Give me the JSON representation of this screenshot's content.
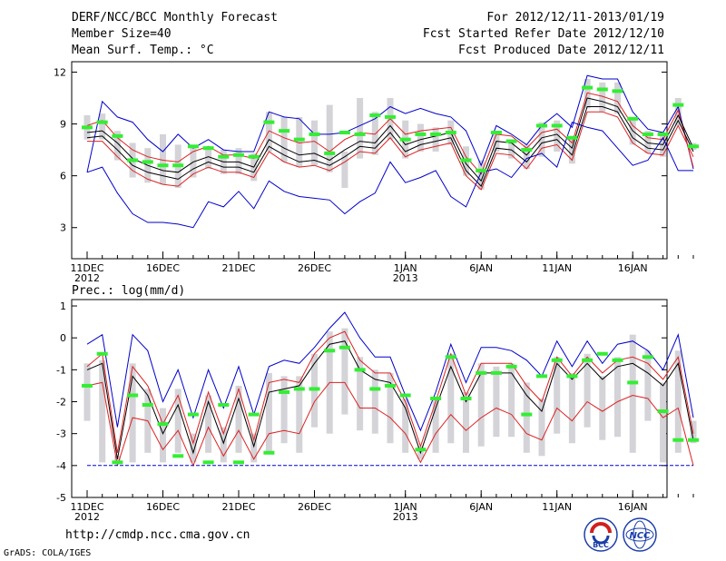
{
  "header": {
    "title": "DERF/NCC/BCC Monthly Forecast",
    "member_size": "Member Size=40",
    "variable_top": "Mean Surf. Temp.: °C",
    "period": "For 2012/12/11-2013/01/19",
    "started": "Fcst Started Refer Date 2012/12/10",
    "produced": "Fcst Produced Date 2012/12/11"
  },
  "bottom_label": "Prec.: log(mm/d)",
  "footer": {
    "url": "http://cmdp.ncc.cma.gov.cn",
    "grads": "GrADS: COLA/IGES",
    "logo_left": "BCC",
    "logo_right": "NCC"
  },
  "colors": {
    "box": "#d3d3d8",
    "obs": "#33ee33",
    "mean": "#000000",
    "spread": "#dd2222",
    "extreme": "#0000cc"
  },
  "chart_data": [
    {
      "type": "line",
      "title": "Mean Surf. Temp.: °C",
      "x_days": 40,
      "x_tick_labels": [
        {
          "day": 0,
          "label": "11DEC",
          "sub": "2012"
        },
        {
          "day": 5,
          "label": "16DEC",
          "sub": ""
        },
        {
          "day": 10,
          "label": "21DEC",
          "sub": ""
        },
        {
          "day": 15,
          "label": "26DEC",
          "sub": ""
        },
        {
          "day": 21,
          "label": "1JAN",
          "sub": "2013"
        },
        {
          "day": 26,
          "label": "6JAN",
          "sub": ""
        },
        {
          "day": 31,
          "label": "11JAN",
          "sub": ""
        },
        {
          "day": 36,
          "label": "16JAN",
          "sub": ""
        }
      ],
      "yticks": [
        3,
        6,
        9,
        12
      ],
      "ylim": [
        1.2,
        12.6
      ],
      "series": [
        {
          "name": "max",
          "values": [
            6.2,
            10.3,
            9.4,
            9.1,
            8.1,
            7.4,
            8.4,
            7.6,
            8.1,
            7.5,
            7.4,
            7.4,
            9.7,
            9.4,
            9.3,
            8.4,
            8.4,
            8.5,
            8.9,
            9.3,
            10.0,
            9.6,
            9.9,
            9.6,
            9.4,
            8.6,
            6.6,
            8.9,
            8.4,
            7.8,
            8.9,
            9.6,
            8.8,
            11.8,
            11.6,
            11.6,
            9.7,
            8.7,
            8.5,
            10.0,
            6.4
          ]
        },
        {
          "name": "upper",
          "values": [
            8.9,
            9.2,
            8.2,
            7.5,
            7.1,
            6.9,
            6.8,
            7.4,
            7.7,
            7.2,
            7.2,
            7.0,
            8.6,
            8.2,
            7.9,
            8.0,
            7.4,
            8.1,
            8.5,
            8.4,
            9.3,
            8.4,
            8.6,
            8.7,
            8.8,
            7.1,
            6.1,
            8.4,
            8.3,
            7.6,
            8.5,
            8.7,
            7.9,
            10.8,
            10.6,
            10.3,
            8.9,
            8.2,
            8.1,
            9.8,
            6.5
          ]
        },
        {
          "name": "mean",
          "values": [
            8.5,
            8.6,
            7.9,
            7.0,
            6.6,
            6.3,
            6.2,
            6.8,
            7.1,
            6.8,
            6.8,
            6.5,
            8.1,
            7.6,
            7.2,
            7.3,
            6.9,
            7.5,
            8.0,
            7.9,
            8.9,
            7.8,
            8.1,
            8.3,
            8.5,
            6.7,
            5.7,
            8.0,
            7.9,
            7.2,
            8.2,
            8.4,
            7.6,
            10.5,
            10.3,
            10.0,
            8.6,
            7.9,
            7.8,
            9.5,
            7.6
          ]
        },
        {
          "name": "median",
          "values": [
            8.2,
            8.3,
            7.5,
            6.6,
            6.2,
            6.0,
            5.8,
            6.4,
            6.8,
            6.5,
            6.5,
            6.2,
            7.7,
            7.2,
            6.8,
            6.9,
            6.6,
            7.1,
            7.7,
            7.6,
            8.5,
            7.4,
            7.8,
            8.0,
            8.2,
            6.3,
            5.4,
            7.6,
            7.5,
            6.8,
            7.9,
            8.1,
            7.2,
            10.0,
            10.0,
            9.7,
            8.2,
            7.6,
            7.5,
            9.2,
            7.4
          ]
        },
        {
          "name": "lower",
          "values": [
            8.0,
            8.0,
            7.1,
            6.3,
            5.8,
            5.5,
            5.4,
            6.1,
            6.5,
            6.2,
            6.2,
            5.9,
            7.4,
            6.8,
            6.5,
            6.6,
            6.3,
            6.8,
            7.4,
            7.3,
            8.2,
            7.1,
            7.5,
            7.7,
            7.9,
            6.0,
            5.2,
            7.3,
            7.2,
            6.4,
            7.6,
            7.8,
            6.9,
            9.7,
            9.7,
            9.4,
            7.9,
            7.3,
            7.2,
            8.9,
            7.1
          ]
        },
        {
          "name": "min",
          "values": [
            6.2,
            6.5,
            5.0,
            3.8,
            3.3,
            3.3,
            3.2,
            3.0,
            4.5,
            4.2,
            5.1,
            4.1,
            5.7,
            5.1,
            4.8,
            4.7,
            4.6,
            3.8,
            4.5,
            5.0,
            6.8,
            5.6,
            5.9,
            6.3,
            4.8,
            4.2,
            6.2,
            6.4,
            5.9,
            7.0,
            7.3,
            6.5,
            9.1,
            8.8,
            8.6,
            7.6,
            6.6,
            6.9,
            8.2,
            6.3,
            6.3
          ]
        }
      ],
      "box_ranges": [
        [
          8.1,
          9.5
        ],
        [
          8.1,
          9.6
        ],
        [
          6.9,
          8.6
        ],
        [
          5.9,
          7.9
        ],
        [
          5.6,
          7.6
        ],
        [
          5.5,
          8.4
        ],
        [
          5.3,
          7.8
        ],
        [
          5.9,
          7.7
        ],
        [
          6.4,
          7.7
        ],
        [
          6.1,
          7.5
        ],
        [
          6.1,
          7.6
        ],
        [
          5.7,
          7.3
        ],
        [
          7.4,
          9.7
        ],
        [
          6.8,
          9.4
        ],
        [
          6.5,
          9.4
        ],
        [
          6.6,
          9.2
        ],
        [
          6.2,
          10.1
        ],
        [
          5.3,
          7.4
        ],
        [
          7.0,
          10.5
        ],
        [
          7.2,
          9.7
        ],
        [
          8.1,
          10.5
        ],
        [
          7.0,
          9.2
        ],
        [
          7.4,
          9.0
        ],
        [
          7.4,
          8.8
        ],
        [
          7.8,
          9.2
        ],
        [
          6.0,
          7.7
        ],
        [
          5.2,
          6.9
        ],
        [
          7.4,
          8.6
        ],
        [
          7.0,
          8.1
        ],
        [
          6.4,
          7.8
        ],
        [
          7.1,
          9.1
        ],
        [
          7.4,
          9.2
        ],
        [
          6.7,
          8.1
        ],
        [
          9.9,
          11.6
        ],
        [
          9.7,
          11.4
        ],
        [
          9.6,
          11.4
        ],
        [
          7.8,
          9.3
        ],
        [
          7.3,
          8.6
        ],
        [
          7.1,
          8.4
        ],
        [
          8.9,
          10.5
        ],
        [
          7.5,
          7.9
        ]
      ],
      "observed": [
        8.8,
        9.1,
        8.3,
        6.9,
        6.8,
        6.6,
        6.6,
        7.7,
        7.6,
        7.1,
        7.2,
        7.1,
        9.1,
        8.6,
        8.1,
        8.4,
        7.3,
        8.5,
        8.4,
        9.5,
        9.4,
        8.1,
        8.4,
        8.4,
        8.5,
        6.9,
        6.3,
        8.5,
        8.0,
        7.5,
        8.9,
        8.9,
        8.2,
        11.1,
        11.0,
        10.9,
        9.3,
        8.4,
        8.4,
        10.1,
        7.7
      ]
    },
    {
      "type": "line",
      "title": "Prec.: log(mm/d)",
      "x_days": 40,
      "x_tick_labels": [
        {
          "day": 0,
          "label": "11DEC",
          "sub": "2012"
        },
        {
          "day": 5,
          "label": "16DEC",
          "sub": ""
        },
        {
          "day": 10,
          "label": "21DEC",
          "sub": ""
        },
        {
          "day": 15,
          "label": "26DEC",
          "sub": ""
        },
        {
          "day": 21,
          "label": "1JAN",
          "sub": "2013"
        },
        {
          "day": 26,
          "label": "6JAN",
          "sub": ""
        },
        {
          "day": 31,
          "label": "11JAN",
          "sub": ""
        },
        {
          "day": 36,
          "label": "16JAN",
          "sub": ""
        }
      ],
      "yticks": [
        -5,
        -4,
        -3,
        -2,
        -1,
        0,
        1
      ],
      "ylim": [
        -5,
        1.2
      ],
      "series": [
        {
          "name": "max",
          "values": [
            -0.2,
            0.1,
            -2.8,
            0.1,
            -0.4,
            -2.0,
            -1.0,
            -2.5,
            -1.0,
            -2.2,
            -0.9,
            -2.4,
            -0.9,
            -0.7,
            -0.8,
            -0.3,
            0.3,
            0.8,
            0.0,
            -0.6,
            -0.6,
            -1.8,
            -2.9,
            -1.7,
            -0.2,
            -1.4,
            -0.3,
            -0.3,
            -0.4,
            -0.7,
            -1.2,
            -0.1,
            -0.9,
            -0.1,
            -0.8,
            -0.2,
            -0.1,
            -0.4,
            -1.0,
            0.1,
            -2.5
          ]
        },
        {
          "name": "upper",
          "values": [
            -0.9,
            -0.5,
            -3.6,
            -0.9,
            -1.5,
            -2.7,
            -1.8,
            -3.3,
            -1.7,
            -3.0,
            -1.6,
            -3.2,
            -1.4,
            -1.3,
            -1.4,
            -0.5,
            0.0,
            0.2,
            -0.7,
            -1.1,
            -1.1,
            -2.0,
            -3.4,
            -2.0,
            -0.5,
            -1.8,
            -0.8,
            -0.8,
            -0.8,
            -1.5,
            -2.0,
            -0.6,
            -1.2,
            -0.6,
            -1.1,
            -0.7,
            -0.6,
            -0.8,
            -1.3,
            -0.6,
            -3.0
          ]
        },
        {
          "name": "mean",
          "values": [
            -1.0,
            -0.8,
            -3.8,
            -1.2,
            -1.8,
            -3.0,
            -2.1,
            -3.6,
            -2.0,
            -3.3,
            -1.9,
            -3.4,
            -1.7,
            -1.6,
            -1.5,
            -0.8,
            -0.2,
            -0.1,
            -1.0,
            -1.3,
            -1.4,
            -2.2,
            -3.6,
            -2.2,
            -0.9,
            -2.0,
            -1.1,
            -1.1,
            -1.1,
            -1.8,
            -2.3,
            -0.8,
            -1.3,
            -0.8,
            -1.3,
            -0.9,
            -0.8,
            -1.1,
            -1.5,
            -0.8,
            -3.2
          ]
        },
        {
          "name": "lower",
          "values": [
            -1.5,
            -1.4,
            -4.0,
            -2.5,
            -2.6,
            -3.5,
            -2.9,
            -4.0,
            -2.8,
            -3.7,
            -2.9,
            -3.8,
            -3.0,
            -2.9,
            -3.0,
            -2.0,
            -1.4,
            -1.4,
            -2.2,
            -2.2,
            -2.5,
            -3.0,
            -3.9,
            -3.0,
            -2.4,
            -2.9,
            -2.5,
            -2.2,
            -2.4,
            -3.0,
            -3.2,
            -2.2,
            -2.6,
            -2.0,
            -2.3,
            -2.0,
            -1.8,
            -1.9,
            -2.5,
            -2.2,
            -4.0
          ]
        },
        {
          "name": "min",
          "values": [
            -4.0,
            -4.0,
            -4.0,
            -4.0,
            -4.0,
            -4.0,
            -4.0,
            -4.0,
            -4.0,
            -4.0,
            -4.0,
            -4.0,
            -4.0,
            -4.0,
            -4.0,
            -4.0,
            -4.0,
            -4.0,
            -4.0,
            -4.0,
            -4.0,
            -4.0,
            -4.0,
            -4.0,
            -4.0,
            -4.0,
            -4.0,
            -4.0,
            -4.0,
            -4.0,
            -4.0,
            -4.0,
            -4.0,
            -4.0,
            -4.0,
            -4.0,
            -4.0,
            -4.0,
            -4.0,
            -4.0,
            -4.0
          ]
        }
      ],
      "box_ranges": [
        [
          -2.6,
          -0.8
        ],
        [
          -3.9,
          -0.7
        ],
        [
          -3.9,
          -3.7
        ],
        [
          -3.9,
          -0.8
        ],
        [
          -3.6,
          -1.6
        ],
        [
          -3.9,
          -2.2
        ],
        [
          -3.6,
          -1.6
        ],
        [
          -3.9,
          -3.0
        ],
        [
          -3.6,
          -1.8
        ],
        [
          -3.9,
          -2.8
        ],
        [
          -3.6,
          -1.5
        ],
        [
          -3.9,
          -3.0
        ],
        [
          -3.6,
          -1.1
        ],
        [
          -3.3,
          -1.2
        ],
        [
          -3.6,
          -1.2
        ],
        [
          -2.8,
          -0.5
        ],
        [
          -3.0,
          0.2
        ],
        [
          -2.4,
          0.3
        ],
        [
          -2.9,
          -0.6
        ],
        [
          -3.0,
          -1.0
        ],
        [
          -3.3,
          -1.1
        ],
        [
          -3.6,
          -1.9
        ],
        [
          -3.8,
          -3.4
        ],
        [
          -3.6,
          -1.9
        ],
        [
          -3.3,
          -0.5
        ],
        [
          -3.6,
          -1.7
        ],
        [
          -3.4,
          -0.8
        ],
        [
          -3.1,
          -0.9
        ],
        [
          -3.1,
          -0.8
        ],
        [
          -3.6,
          -1.4
        ],
        [
          -3.7,
          -1.9
        ],
        [
          -3.0,
          -0.6
        ],
        [
          -3.3,
          -1.1
        ],
        [
          -2.8,
          -0.5
        ],
        [
          -3.2,
          -1.2
        ],
        [
          -3.1,
          -0.6
        ],
        [
          -3.6,
          0.1
        ],
        [
          -2.6,
          -0.4
        ],
        [
          -3.9,
          -1.4
        ],
        [
          -3.6,
          -0.4
        ],
        [
          -3.3,
          -2.6
        ]
      ],
      "observed": [
        -1.5,
        -0.5,
        -3.9,
        -1.8,
        -2.1,
        -2.7,
        -3.7,
        -2.4,
        -3.9,
        -2.1,
        -3.9,
        -2.4,
        -3.6,
        -1.7,
        -1.6,
        -1.6,
        -0.4,
        -0.3,
        -1.0,
        -1.6,
        -1.5,
        -1.8,
        -3.5,
        -1.9,
        -0.6,
        -1.9,
        -1.1,
        -1.1,
        -0.9,
        -2.4,
        -1.2,
        -0.7,
        -1.2,
        -0.7,
        -0.5,
        -0.7,
        -1.4,
        -0.6,
        -2.3,
        -3.2,
        -3.2
      ]
    }
  ]
}
